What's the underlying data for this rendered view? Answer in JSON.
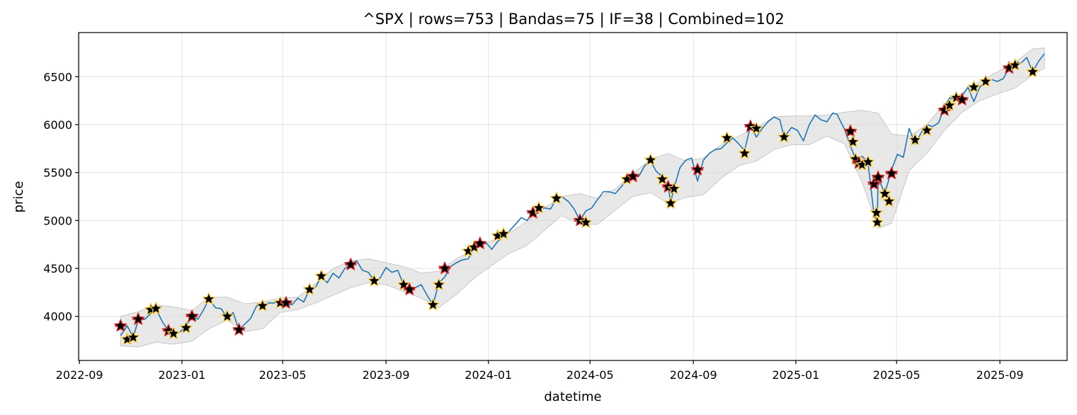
{
  "chart_data": {
    "type": "line",
    "title": "^SPX | rows=753 | Bandas=75 | IF=38 | Combined=102",
    "xlabel": "datetime",
    "ylabel": "price",
    "x_ticks": [
      "2022-09",
      "2023-01",
      "2023-05",
      "2023-09",
      "2024-01",
      "2024-05",
      "2024-09",
      "2025-01",
      "2025-05",
      "2025-09"
    ],
    "y_ticks": [
      4000,
      4500,
      5000,
      5500,
      6000,
      6500
    ],
    "xlim": [
      "2022-08-31",
      "2025-11-20"
    ],
    "ylim": [
      3540,
      6960
    ],
    "grid": true,
    "colors": {
      "price": "#1f77b4",
      "band": "#d9d9d9",
      "marker_fill": "#000000",
      "marker_edge_bandas": "#ffd24a",
      "marker_edge_if": "#e03030"
    },
    "series": [
      {
        "key": "price",
        "x": [
          "2022-10-20",
          "2022-10-28",
          "2022-11-04",
          "2022-11-10",
          "2022-11-18",
          "2022-11-25",
          "2022-12-01",
          "2022-12-09",
          "2022-12-16",
          "2022-12-22",
          "2022-12-30",
          "2023-01-06",
          "2023-01-13",
          "2023-01-20",
          "2023-01-27",
          "2023-02-02",
          "2023-02-10",
          "2023-02-17",
          "2023-02-24",
          "2023-03-03",
          "2023-03-10",
          "2023-03-17",
          "2023-03-24",
          "2023-03-31",
          "2023-04-07",
          "2023-04-14",
          "2023-04-21",
          "2023-04-28",
          "2023-05-05",
          "2023-05-12",
          "2023-05-19",
          "2023-05-26",
          "2023-06-02",
          "2023-06-09",
          "2023-06-16",
          "2023-06-23",
          "2023-06-30",
          "2023-07-07",
          "2023-07-14",
          "2023-07-21",
          "2023-07-28",
          "2023-08-04",
          "2023-08-11",
          "2023-08-18",
          "2023-08-25",
          "2023-09-01",
          "2023-09-08",
          "2023-09-15",
          "2023-09-22",
          "2023-09-29",
          "2023-10-06",
          "2023-10-13",
          "2023-10-20",
          "2023-10-27",
          "2023-11-03",
          "2023-11-10",
          "2023-11-17",
          "2023-11-24",
          "2023-12-01",
          "2023-12-08",
          "2023-12-15",
          "2023-12-22",
          "2023-12-29",
          "2024-01-05",
          "2024-01-12",
          "2024-01-19",
          "2024-01-26",
          "2024-02-02",
          "2024-02-09",
          "2024-02-16",
          "2024-02-23",
          "2024-03-01",
          "2024-03-08",
          "2024-03-15",
          "2024-03-22",
          "2024-03-28",
          "2024-04-05",
          "2024-04-12",
          "2024-04-19",
          "2024-04-26",
          "2024-05-03",
          "2024-05-10",
          "2024-05-17",
          "2024-05-24",
          "2024-05-31",
          "2024-06-07",
          "2024-06-14",
          "2024-06-21",
          "2024-06-28",
          "2024-07-05",
          "2024-07-12",
          "2024-07-19",
          "2024-07-26",
          "2024-08-02",
          "2024-08-05",
          "2024-08-09",
          "2024-08-16",
          "2024-08-23",
          "2024-08-30",
          "2024-09-06",
          "2024-09-13",
          "2024-09-20",
          "2024-09-27",
          "2024-10-04",
          "2024-10-11",
          "2024-10-18",
          "2024-10-25",
          "2024-11-01",
          "2024-11-08",
          "2024-11-15",
          "2024-11-22",
          "2024-11-29",
          "2024-12-06",
          "2024-12-13",
          "2024-12-18",
          "2024-12-27",
          "2025-01-03",
          "2025-01-10",
          "2025-01-17",
          "2025-01-24",
          "2025-01-31",
          "2025-02-07",
          "2025-02-14",
          "2025-02-19",
          "2025-02-28",
          "2025-03-07",
          "2025-03-13",
          "2025-03-21",
          "2025-03-28",
          "2025-04-04",
          "2025-04-08",
          "2025-04-09",
          "2025-04-17",
          "2025-04-25",
          "2025-05-02",
          "2025-05-09",
          "2025-05-16",
          "2025-05-23",
          "2025-05-30",
          "2025-06-06",
          "2025-06-13",
          "2025-06-20",
          "2025-06-27",
          "2025-07-03",
          "2025-07-11",
          "2025-07-18",
          "2025-07-25",
          "2025-08-01",
          "2025-08-08",
          "2025-08-15",
          "2025-08-22",
          "2025-08-29",
          "2025-09-05",
          "2025-09-12",
          "2025-09-19",
          "2025-09-26",
          "2025-10-03",
          "2025-10-10",
          "2025-10-17",
          "2025-10-24"
        ],
        "values": [
          3800,
          3900,
          3780,
          3960,
          3970,
          4030,
          4080,
          3940,
          3850,
          3820,
          3840,
          3900,
          4000,
          3970,
          4070,
          4180,
          4090,
          4080,
          3980,
          4040,
          3860,
          3920,
          3980,
          4110,
          4110,
          4140,
          4140,
          4170,
          4140,
          4120,
          4190,
          4150,
          4280,
          4300,
          4420,
          4350,
          4450,
          4400,
          4500,
          4540,
          4580,
          4480,
          4460,
          4370,
          4400,
          4510,
          4460,
          4480,
          4330,
          4290,
          4300,
          4330,
          4220,
          4120,
          4350,
          4410,
          4520,
          4560,
          4590,
          4600,
          4720,
          4750,
          4770,
          4700,
          4780,
          4840,
          4890,
          4960,
          5030,
          5000,
          5090,
          5130,
          5130,
          5120,
          5230,
          5250,
          5200,
          5120,
          5000,
          5100,
          5130,
          5220,
          5300,
          5300,
          5280,
          5350,
          5430,
          5460,
          5460,
          5570,
          5620,
          5510,
          5460,
          5350,
          5190,
          5340,
          5550,
          5630,
          5650,
          5410,
          5630,
          5700,
          5740,
          5750,
          5810,
          5860,
          5800,
          5730,
          5990,
          5870,
          5960,
          6030,
          6080,
          6050,
          5870,
          5970,
          5940,
          5830,
          6000,
          6100,
          6050,
          6030,
          6120,
          6110,
          5950,
          5780,
          5640,
          5670,
          5600,
          5070,
          4980,
          5450,
          5280,
          5530,
          5690,
          5660,
          5960,
          5800,
          5910,
          6000,
          5980,
          6020,
          6180,
          6280,
          6260,
          6300,
          6390,
          6240,
          6390,
          6450,
          6470,
          6450,
          6480,
          6590,
          6660,
          6640,
          6700,
          6550,
          6660,
          6740
        ]
      },
      {
        "key": "band",
        "x": [
          "2022-10-20",
          "2022-11-10",
          "2022-12-01",
          "2022-12-22",
          "2023-01-13",
          "2023-02-02",
          "2023-02-24",
          "2023-03-17",
          "2023-04-07",
          "2023-04-28",
          "2023-05-19",
          "2023-06-09",
          "2023-06-30",
          "2023-07-21",
          "2023-08-11",
          "2023-09-01",
          "2023-09-22",
          "2023-10-13",
          "2023-11-03",
          "2023-11-24",
          "2023-12-15",
          "2024-01-05",
          "2024-01-26",
          "2024-02-16",
          "2024-03-08",
          "2024-03-28",
          "2024-04-19",
          "2024-05-10",
          "2024-05-31",
          "2024-06-21",
          "2024-07-12",
          "2024-08-02",
          "2024-08-23",
          "2024-09-13",
          "2024-10-04",
          "2024-10-25",
          "2024-11-15",
          "2024-12-06",
          "2024-12-27",
          "2025-01-17",
          "2025-02-07",
          "2025-02-28",
          "2025-03-21",
          "2025-04-09",
          "2025-04-25",
          "2025-05-16",
          "2025-06-06",
          "2025-06-27",
          "2025-07-18",
          "2025-08-08",
          "2025-08-29",
          "2025-09-19",
          "2025-10-10",
          "2025-10-24"
        ],
        "upper": [
          4000,
          4050,
          4120,
          4100,
          4060,
          4200,
          4200,
          4130,
          4150,
          4190,
          4200,
          4340,
          4500,
          4580,
          4600,
          4560,
          4520,
          4450,
          4470,
          4600,
          4700,
          4790,
          4870,
          4990,
          5130,
          5250,
          5280,
          5230,
          5330,
          5490,
          5640,
          5700,
          5620,
          5650,
          5790,
          5880,
          5970,
          6080,
          6090,
          6090,
          6100,
          6130,
          6150,
          6120,
          5900,
          5880,
          6000,
          6220,
          6330,
          6450,
          6550,
          6650,
          6790,
          6800
        ],
        "lower": [
          3690,
          3680,
          3730,
          3710,
          3740,
          3870,
          3960,
          3840,
          3870,
          4040,
          4070,
          4140,
          4220,
          4300,
          4350,
          4330,
          4260,
          4190,
          4090,
          4230,
          4400,
          4530,
          4660,
          4740,
          4900,
          5050,
          4960,
          4960,
          5110,
          5250,
          5290,
          5180,
          5240,
          5270,
          5440,
          5570,
          5620,
          5740,
          5790,
          5790,
          5880,
          5800,
          5400,
          4920,
          4970,
          5520,
          5700,
          5940,
          6130,
          6250,
          6320,
          6380,
          6520,
          6590
        ]
      }
    ],
    "markers": {
      "type": "scatter",
      "x": [
        "2022-10-20",
        "2022-10-28",
        "2022-11-04",
        "2022-11-10",
        "2022-11-25",
        "2022-12-01",
        "2022-12-16",
        "2022-12-22",
        "2023-01-06",
        "2023-01-13",
        "2023-02-02",
        "2023-02-24",
        "2023-03-10",
        "2023-04-07",
        "2023-04-28",
        "2023-05-05",
        "2023-06-02",
        "2023-06-16",
        "2023-07-21",
        "2023-08-18",
        "2023-09-22",
        "2023-09-29",
        "2023-10-27",
        "2023-11-03",
        "2023-11-10",
        "2023-12-08",
        "2023-12-15",
        "2023-12-22",
        "2024-01-12",
        "2024-01-19",
        "2024-02-23",
        "2024-03-01",
        "2024-03-22",
        "2024-04-19",
        "2024-04-26",
        "2024-06-14",
        "2024-06-21",
        "2024-07-12",
        "2024-07-26",
        "2024-08-02",
        "2024-08-05",
        "2024-08-09",
        "2024-09-06",
        "2024-10-11",
        "2024-11-01",
        "2024-11-08",
        "2024-11-15",
        "2024-12-18",
        "2025-03-07",
        "2025-03-10",
        "2025-03-13",
        "2025-03-17",
        "2025-03-21",
        "2025-03-28",
        "2025-04-04",
        "2025-04-07",
        "2025-04-08",
        "2025-04-09",
        "2025-04-17",
        "2025-04-22",
        "2025-04-25",
        "2025-05-23",
        "2025-06-06",
        "2025-06-27",
        "2025-07-03",
        "2025-07-11",
        "2025-07-18",
        "2025-08-01",
        "2025-08-15",
        "2025-09-12",
        "2025-09-19",
        "2025-10-10"
      ],
      "values": [
        3900,
        3760,
        3780,
        3970,
        4070,
        4080,
        3850,
        3820,
        3880,
        4000,
        4180,
        4000,
        3860,
        4110,
        4140,
        4140,
        4280,
        4420,
        4540,
        4370,
        4330,
        4280,
        4120,
        4330,
        4500,
        4680,
        4720,
        4760,
        4840,
        4860,
        5080,
        5130,
        5230,
        5000,
        4980,
        5430,
        5460,
        5630,
        5430,
        5350,
        5180,
        5330,
        5530,
        5860,
        5700,
        5980,
        5960,
        5870,
        5930,
        5820,
        5640,
        5600,
        5580,
        5610,
        5380,
        5080,
        4980,
        5450,
        5280,
        5200,
        5490,
        5840,
        5940,
        6150,
        6200,
        6280,
        6260,
        6390,
        6450,
        6590,
        6620,
        6550
      ]
    }
  }
}
